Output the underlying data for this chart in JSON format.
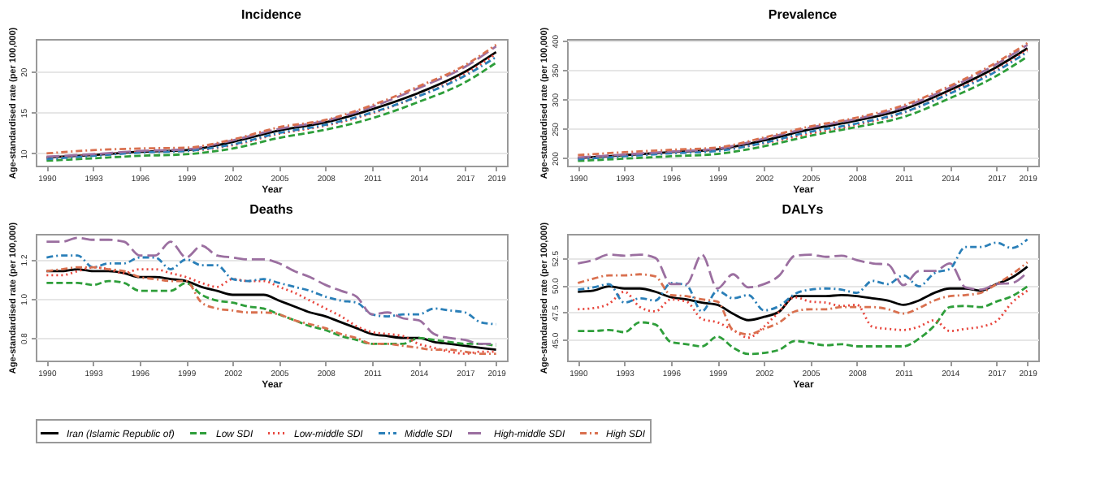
{
  "chart_data": [
    {
      "type": "line",
      "title": "Incidence",
      "xlabel": "Year",
      "ylabel": "Age-standardised rate (per 100,000)",
      "x": [
        1990,
        1993,
        1996,
        1999,
        2002,
        2005,
        2008,
        2011,
        2014,
        2017,
        2019
      ],
      "xlim": [
        1989.3,
        2019.7
      ],
      "xticks": [
        1990,
        1993,
        1996,
        1999,
        2002,
        2005,
        2008,
        2011,
        2014,
        2017,
        2019
      ],
      "ylim": [
        8.5,
        24
      ],
      "yticks": [
        10,
        15,
        20
      ],
      "grid": "y",
      "legend": "bottom",
      "series": [
        {
          "name": "Iran (Islamic Republic of)",
          "color": "#000000",
          "line_style": "solid",
          "values": [
            9.5,
            9.8,
            10.2,
            10.4,
            11.4,
            12.8,
            13.8,
            15.4,
            17.4,
            20.0,
            22.4
          ]
        },
        {
          "name": "Low SDI",
          "color": "#2e9e3a",
          "line_style": "dashed",
          "values": [
            9.1,
            9.4,
            9.7,
            9.9,
            10.6,
            11.9,
            12.9,
            14.3,
            16.3,
            18.7,
            21.1
          ]
        },
        {
          "name": "Low-middle SDI",
          "color": "#e8453c",
          "line_style": "dotted",
          "values": [
            9.4,
            9.8,
            10.2,
            10.3,
            11.0,
            12.4,
            13.4,
            14.9,
            17.0,
            19.7,
            22.2
          ]
        },
        {
          "name": "Middle SDI",
          "color": "#2a7fb8",
          "line_style": "dashdot",
          "values": [
            9.3,
            9.7,
            10.1,
            10.3,
            11.1,
            12.5,
            13.5,
            15.0,
            17.0,
            19.5,
            21.8
          ]
        },
        {
          "name": "High-middle SDI",
          "color": "#9b6fa0",
          "line_style": "longdash",
          "values": [
            9.6,
            9.9,
            10.3,
            10.5,
            11.6,
            13.0,
            14.0,
            15.7,
            18.0,
            20.6,
            23.1
          ]
        },
        {
          "name": "High SDI",
          "color": "#d9704f",
          "line_style": "dashdot",
          "values": [
            10.0,
            10.4,
            10.6,
            10.7,
            11.7,
            13.2,
            14.1,
            15.9,
            18.2,
            20.8,
            23.3
          ]
        }
      ]
    },
    {
      "type": "line",
      "title": "Prevalence",
      "xlabel": "Year",
      "ylabel": "Age-standardised rate (per 100,000)",
      "x": [
        1990,
        1993,
        1996,
        1999,
        2002,
        2005,
        2008,
        2011,
        2014,
        2017,
        2019
      ],
      "xlim": [
        1989.3,
        2019.7
      ],
      "xticks": [
        1990,
        1993,
        1996,
        1999,
        2002,
        2005,
        2008,
        2011,
        2014,
        2017,
        2019
      ],
      "ylim": [
        187,
        403
      ],
      "yticks": [
        200,
        250,
        300,
        350,
        400
      ],
      "grid": "y",
      "legend": "bottom",
      "series": [
        {
          "name": "Iran (Islamic Republic of)",
          "color": "#000000",
          "line_style": "solid",
          "values": [
            200,
            205,
            210,
            215,
            230,
            249,
            264,
            283,
            316,
            355,
            387
          ]
        },
        {
          "name": "Low SDI",
          "color": "#2e9e3a",
          "line_style": "dashed",
          "values": [
            195,
            199,
            203,
            207,
            220,
            238,
            253,
            270,
            302,
            340,
            373
          ]
        },
        {
          "name": "Low-middle SDI",
          "color": "#e8453c",
          "line_style": "dotted",
          "values": [
            199,
            204,
            209,
            213,
            225,
            242,
            257,
            277,
            312,
            350,
            384
          ]
        },
        {
          "name": "Middle SDI",
          "color": "#2a7fb8",
          "line_style": "dashdot",
          "values": [
            198,
            203,
            208,
            212,
            226,
            245,
            259,
            278,
            310,
            348,
            381
          ]
        },
        {
          "name": "High-middle SDI",
          "color": "#9b6fa0",
          "line_style": "longdash",
          "values": [
            201,
            206,
            211,
            216,
            233,
            252,
            267,
            287,
            320,
            360,
            393
          ]
        },
        {
          "name": "High SDI",
          "color": "#d9704f",
          "line_style": "dashdot",
          "values": [
            205,
            210,
            214,
            218,
            235,
            254,
            269,
            290,
            323,
            363,
            396
          ]
        }
      ]
    },
    {
      "type": "line",
      "title": "Deaths",
      "xlabel": "Year",
      "ylabel": "Age-standardised rate (per 100,000)",
      "x": [
        1990,
        1991,
        1992,
        1993,
        1994,
        1995,
        1996,
        1997,
        1998,
        1999,
        2000,
        2001,
        2002,
        2003,
        2004,
        2005,
        2006,
        2007,
        2008,
        2009,
        2010,
        2011,
        2012,
        2013,
        2014,
        2015,
        2016,
        2017,
        2018,
        2019
      ],
      "xlim": [
        1989.3,
        2019.7
      ],
      "xticks": [
        1990,
        1993,
        1996,
        1999,
        2002,
        2005,
        2008,
        2011,
        2014,
        2017,
        2019
      ],
      "ylim": [
        0.685,
        1.33
      ],
      "yticks": [
        0.8,
        {
          "value": 1,
          "label": "1.0"
        },
        1.2
      ],
      "grid": "y",
      "legend": "bottom",
      "series": [
        {
          "name": "Iran (Islamic Republic of)",
          "color": "#000000",
          "line_style": "solid",
          "values": [
            1.14,
            1.14,
            1.15,
            1.14,
            1.14,
            1.13,
            1.11,
            1.11,
            1.1,
            1.09,
            1.06,
            1.04,
            1.02,
            1.02,
            1.02,
            0.99,
            0.96,
            0.93,
            0.91,
            0.88,
            0.85,
            0.82,
            0.81,
            0.8,
            0.8,
            0.78,
            0.77,
            0.76,
            0.75,
            0.74
          ]
        },
        {
          "name": "Low SDI",
          "color": "#2e9e3a",
          "line_style": "dashed",
          "values": [
            1.08,
            1.08,
            1.08,
            1.07,
            1.09,
            1.08,
            1.04,
            1.04,
            1.04,
            1.08,
            1.02,
            0.99,
            0.98,
            0.96,
            0.95,
            0.92,
            0.89,
            0.86,
            0.84,
            0.81,
            0.79,
            0.77,
            0.77,
            0.77,
            0.8,
            0.79,
            0.78,
            0.77,
            0.77,
            0.76
          ]
        },
        {
          "name": "Low-middle SDI",
          "color": "#e8453c",
          "line_style": "dotted",
          "values": [
            1.12,
            1.12,
            1.14,
            1.16,
            1.15,
            1.13,
            1.15,
            1.15,
            1.13,
            1.11,
            1.08,
            1.06,
            1.1,
            1.09,
            1.09,
            1.06,
            1.03,
            0.99,
            0.95,
            0.91,
            0.86,
            0.83,
            0.82,
            0.81,
            0.77,
            0.75,
            0.73,
            0.72,
            0.73,
            0.73
          ]
        },
        {
          "name": "Middle SDI",
          "color": "#2a7fb8",
          "line_style": "dashdot",
          "values": [
            1.21,
            1.22,
            1.22,
            1.16,
            1.18,
            1.18,
            1.21,
            1.21,
            1.15,
            1.2,
            1.17,
            1.17,
            1.1,
            1.09,
            1.1,
            1.08,
            1.06,
            1.04,
            1.01,
            0.99,
            0.98,
            0.92,
            0.91,
            0.92,
            0.92,
            0.95,
            0.94,
            0.93,
            0.88,
            0.87
          ]
        },
        {
          "name": "High-middle SDI",
          "color": "#9b6fa0",
          "line_style": "longdash",
          "values": [
            1.29,
            1.29,
            1.31,
            1.3,
            1.3,
            1.29,
            1.22,
            1.22,
            1.29,
            1.21,
            1.27,
            1.22,
            1.21,
            1.2,
            1.2,
            1.18,
            1.14,
            1.11,
            1.07,
            1.04,
            1.01,
            0.92,
            0.93,
            0.9,
            0.89,
            0.82,
            0.8,
            0.79,
            0.77,
            0.77
          ]
        },
        {
          "name": "High SDI",
          "color": "#d9704f",
          "line_style": "dashdot",
          "values": [
            1.14,
            1.15,
            1.16,
            1.16,
            1.15,
            1.14,
            1.11,
            1.1,
            1.09,
            1.09,
            0.98,
            0.95,
            0.94,
            0.93,
            0.93,
            0.92,
            0.89,
            0.87,
            0.85,
            0.82,
            0.8,
            0.77,
            0.77,
            0.76,
            0.75,
            0.74,
            0.74,
            0.73,
            0.72,
            0.72
          ]
        }
      ]
    },
    {
      "type": "line",
      "title": "DALYs",
      "xlabel": "Year",
      "ylabel": "Age-standardised rate (per 100,000)",
      "x": [
        1990,
        1991,
        1992,
        1993,
        1994,
        1995,
        1996,
        1997,
        1998,
        1999,
        2000,
        2001,
        2002,
        2003,
        2004,
        2005,
        2006,
        2007,
        2008,
        2009,
        2010,
        2011,
        2012,
        2013,
        2014,
        2015,
        2016,
        2017,
        2018,
        2019
      ],
      "xlim": [
        1989.3,
        2019.7
      ],
      "xticks": [
        1990,
        1993,
        1996,
        1999,
        2002,
        2005,
        2008,
        2011,
        2014,
        2017,
        2019
      ],
      "ylim": [
        43.1,
        54.7
      ],
      "yticks": [
        {
          "value": 45,
          "label": "45.0"
        },
        {
          "value": 47.5,
          "label": "47.5"
        },
        {
          "value": 50,
          "label": "50.0"
        },
        {
          "value": 52.5,
          "label": "52.5"
        }
      ],
      "grid": "y",
      "legend": "bottom",
      "series": [
        {
          "name": "Iran (Islamic Republic of)",
          "color": "#000000",
          "line_style": "solid",
          "values": [
            49.4,
            49.5,
            49.9,
            49.7,
            49.7,
            49.4,
            48.9,
            48.7,
            48.4,
            48.2,
            47.4,
            46.8,
            47.1,
            47.6,
            49.0,
            49.0,
            49.0,
            49.1,
            49.0,
            48.8,
            48.6,
            48.2,
            48.6,
            49.3,
            49.7,
            49.7,
            49.5,
            50.1,
            50.7,
            51.7
          ]
        },
        {
          "name": "Low SDI",
          "color": "#2e9e3a",
          "line_style": "dashed",
          "values": [
            45.8,
            45.8,
            45.9,
            45.7,
            46.6,
            46.4,
            44.8,
            44.6,
            44.4,
            45.3,
            44.3,
            43.7,
            43.8,
            44.1,
            44.9,
            44.7,
            44.5,
            44.6,
            44.4,
            44.4,
            44.4,
            44.4,
            45.1,
            46.3,
            48.0,
            48.1,
            48.0,
            48.5,
            49.0,
            49.9
          ]
        },
        {
          "name": "Low-middle SDI",
          "color": "#e8453c",
          "line_style": "dotted",
          "values": [
            47.8,
            47.9,
            48.3,
            49.4,
            48.0,
            47.6,
            48.7,
            48.5,
            46.9,
            46.6,
            45.9,
            45.2,
            46.2,
            47.6,
            48.9,
            48.5,
            48.4,
            48.1,
            48.2,
            46.2,
            46.0,
            45.9,
            46.2,
            46.8,
            45.8,
            46.0,
            46.2,
            46.7,
            48.4,
            49.5
          ]
        },
        {
          "name": "Middle SDI",
          "color": "#2a7fb8",
          "line_style": "dashdot",
          "values": [
            49.6,
            49.8,
            50.1,
            48.4,
            48.8,
            48.6,
            50.2,
            50.0,
            47.6,
            49.5,
            48.8,
            49.1,
            47.7,
            48.1,
            49.2,
            49.6,
            49.7,
            49.6,
            49.3,
            50.4,
            50.1,
            50.9,
            49.9,
            51.1,
            51.5,
            53.5,
            53.5,
            53.9,
            53.4,
            54.2
          ]
        },
        {
          "name": "High-middle SDI",
          "color": "#9b6fa0",
          "line_style": "longdash",
          "values": [
            52.0,
            52.3,
            52.8,
            52.7,
            52.8,
            52.5,
            50.1,
            50.1,
            52.8,
            49.7,
            51.0,
            49.8,
            50.1,
            50.9,
            52.7,
            52.8,
            52.6,
            52.7,
            52.3,
            52.0,
            51.9,
            50.0,
            51.3,
            51.3,
            52.0,
            49.8,
            49.6,
            50.1,
            50.2,
            51.2
          ]
        },
        {
          "name": "High SDI",
          "color": "#d9704f",
          "line_style": "dashdot",
          "values": [
            50.2,
            50.6,
            50.9,
            50.9,
            51.0,
            50.8,
            49.1,
            49.0,
            48.7,
            48.5,
            45.9,
            45.5,
            46.0,
            46.6,
            47.6,
            47.8,
            47.8,
            48.0,
            48.0,
            48.0,
            47.8,
            47.4,
            47.9,
            48.6,
            49.0,
            49.1,
            49.3,
            50.1,
            51.0,
            52.1
          ]
        }
      ]
    }
  ]
}
